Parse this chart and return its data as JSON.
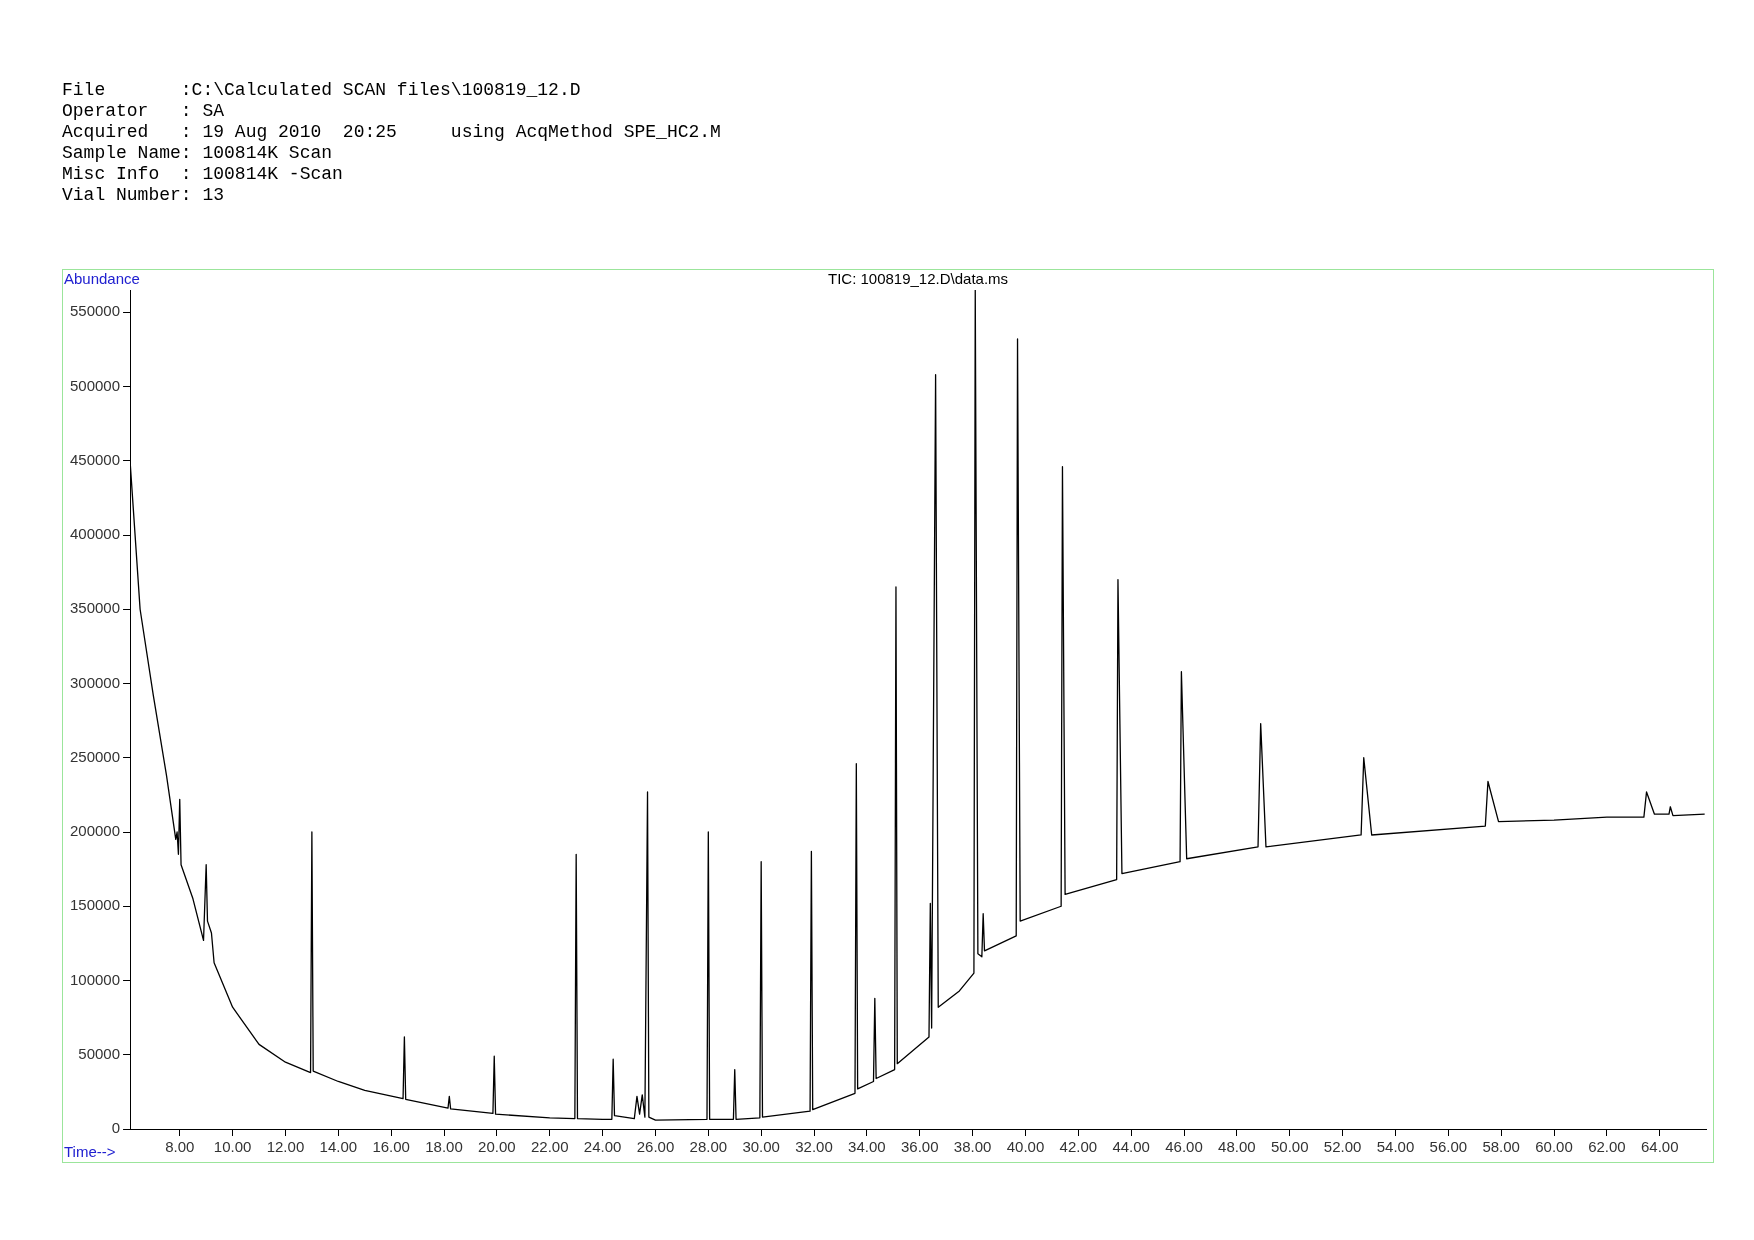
{
  "chart_data": {
    "type": "line",
    "title": "TIC: 100819_12.D\\data.ms",
    "xlabel": "Time-->",
    "ylabel": "Abundance",
    "annotations": [
      "File       :C:\\Calculated SCAN files\\100819_12.D",
      "Operator   : SA",
      "Acquired   : 19 Aug 2010  20:25     using AcqMethod SPE_HC2.M",
      "Sample Name: 100814K Scan",
      "Misc Info  : 100814K -Scan",
      "Vial Number: 13"
    ],
    "x": [
      6.12,
      6.5,
      7.0,
      7.5,
      7.85,
      7.9,
      7.95,
      8.0,
      8.05,
      8.5,
      8.9,
      9.0,
      9.05,
      9.2,
      9.3,
      10.0,
      11.0,
      12.0,
      12.95,
      13.0,
      13.05,
      14.0,
      15.0,
      16.45,
      16.5,
      16.55,
      18.15,
      18.2,
      18.25,
      19.85,
      19.9,
      19.95,
      22.0,
      22.95,
      23.0,
      23.05,
      24.0,
      24.35,
      24.4,
      24.45,
      25.2,
      25.3,
      25.4,
      25.5,
      25.6,
      25.7,
      25.75,
      26.0,
      27.95,
      28.0,
      28.05,
      28.95,
      29.0,
      29.05,
      29.95,
      30.0,
      30.05,
      31.85,
      31.9,
      31.95,
      33.55,
      33.6,
      33.65,
      34.25,
      34.3,
      34.35,
      35.05,
      35.1,
      35.15,
      36.35,
      36.4,
      36.45,
      36.6,
      36.7,
      37.5,
      38.05,
      38.1,
      38.2,
      38.35,
      38.4,
      38.45,
      39.65,
      39.7,
      39.8,
      41.35,
      41.4,
      41.5,
      43.45,
      43.5,
      43.65,
      45.85,
      45.9,
      46.1,
      48.8,
      48.9,
      49.1,
      52.7,
      52.8,
      53.1,
      57.4,
      57.5,
      57.9,
      60.0,
      62.0,
      63.4,
      63.5,
      63.8,
      64.35,
      64.4,
      64.5,
      65.7
    ],
    "series": [
      {
        "color": "#000000",
        "values": [
          450000,
          350000,
          292000,
          238000,
          195000,
          200000,
          185000,
          222000,
          178000,
          155000,
          127000,
          178000,
          140000,
          132000,
          112000,
          82000,
          57000,
          45000,
          38000,
          200000,
          39000,
          32000,
          26000,
          20500,
          62000,
          20000,
          14000,
          22000,
          13500,
          10500,
          49000,
          10000,
          7500,
          7000,
          185000,
          7000,
          6500,
          6500,
          47000,
          9000,
          7000,
          22000,
          10000,
          23000,
          8000,
          227000,
          8000,
          6000,
          6500,
          200000,
          6500,
          6500,
          40000,
          6500,
          7500,
          180000,
          8000,
          12000,
          187000,
          13000,
          24000,
          246000,
          27000,
          32000,
          88000,
          34000,
          40000,
          365000,
          44000,
          62000,
          152000,
          68000,
          508000,
          82000,
          93000,
          105000,
          565000,
          118000,
          116000,
          145000,
          120000,
          130000,
          532000,
          140000,
          150000,
          446000,
          158000,
          168000,
          370000,
          172000,
          180000,
          308000,
          182000,
          190000,
          273000,
          190000,
          198000,
          250000,
          198000,
          204000,
          234000,
          207000,
          208000,
          210000,
          210000,
          227000,
          212000,
          212000,
          217000,
          211000,
          212000
        ]
      }
    ],
    "xlim": [
      6.12,
      65.75
    ],
    "ylim": [
      0,
      565000
    ],
    "xticks": [
      {
        "value": 8,
        "label": "8.00"
      },
      {
        "value": 10,
        "label": "10.00"
      },
      {
        "value": 12,
        "label": "12.00"
      },
      {
        "value": 14,
        "label": "14.00"
      },
      {
        "value": 16,
        "label": "16.00"
      },
      {
        "value": 18,
        "label": "18.00"
      },
      {
        "value": 20,
        "label": "20.00"
      },
      {
        "value": 22,
        "label": "22.00"
      },
      {
        "value": 24,
        "label": "24.00"
      },
      {
        "value": 26,
        "label": "26.00"
      },
      {
        "value": 28,
        "label": "28.00"
      },
      {
        "value": 30,
        "label": "30.00"
      },
      {
        "value": 32,
        "label": "32.00"
      },
      {
        "value": 34,
        "label": "34.00"
      },
      {
        "value": 36,
        "label": "36.00"
      },
      {
        "value": 38,
        "label": "38.00"
      },
      {
        "value": 40,
        "label": "40.00"
      },
      {
        "value": 42,
        "label": "42.00"
      },
      {
        "value": 44,
        "label": "44.00"
      },
      {
        "value": 46,
        "label": "46.00"
      },
      {
        "value": 48,
        "label": "48.00"
      },
      {
        "value": 50,
        "label": "50.00"
      },
      {
        "value": 52,
        "label": "52.00"
      },
      {
        "value": 54,
        "label": "54.00"
      },
      {
        "value": 56,
        "label": "56.00"
      },
      {
        "value": 58,
        "label": "58.00"
      },
      {
        "value": 60,
        "label": "60.00"
      },
      {
        "value": 62,
        "label": "62.00"
      },
      {
        "value": 64,
        "label": "64.00"
      }
    ],
    "yticks": [
      0,
      50000,
      100000,
      150000,
      200000,
      250000,
      300000,
      350000,
      400000,
      450000,
      500000,
      550000
    ],
    "grid": false,
    "legend": false,
    "marker": "none",
    "line_style": "solid"
  }
}
